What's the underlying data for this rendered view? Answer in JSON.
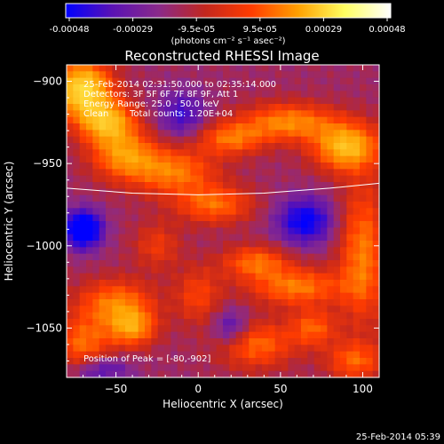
{
  "chart_data": {
    "type": "heatmap",
    "title": "Reconstructed RHESSI Image",
    "xlabel": "Heliocentric X (arcsec)",
    "ylabel": "Heliocentric Y (arcsec)",
    "xlim": [
      -80,
      110
    ],
    "ylim": [
      -1080,
      -890
    ],
    "x_ticks": [
      -50,
      0,
      50,
      100
    ],
    "y_ticks": [
      -900,
      -950,
      -1000,
      -1050
    ],
    "colorbar": {
      "ticks": [
        "-0.00048",
        "-0.00029",
        "-9.5e-05",
        "9.5e-05",
        "0.00029",
        "0.00048"
      ],
      "range": [
        -0.00048,
        0.00048
      ],
      "label": "(photons cm⁻² s⁻¹ asec⁻²)",
      "colors": [
        "#0000ff",
        "#5a12b4",
        "#8a2a8a",
        "#c2271e",
        "#ff3c00",
        "#ffa000",
        "#ffff60",
        "#ffffff"
      ]
    },
    "annotations": {
      "time_range": "25-Feb-2014 02:31:50.000 to 02:35:14.000",
      "detectors": "Detectors: 3F 5F 6F 7F 8F 9F, Att 1",
      "energy_range": "Energy Range: 25.0 - 50.0 keV",
      "algorithm": "Clean",
      "total_counts": "Total counts: 1.20E+04",
      "peak": "Position of Peak = [-80,-902]"
    },
    "peak_position": [
      -80,
      -902
    ],
    "limb": [
      [
        -80,
        -965
      ],
      [
        -40,
        -968
      ],
      [
        0,
        -969
      ],
      [
        40,
        -968
      ],
      [
        80,
        -965
      ],
      [
        110,
        -962
      ]
    ],
    "blobs": [
      {
        "x": -70,
        "y": -905,
        "sx": 12,
        "sy": 12,
        "a": 1.0
      },
      {
        "x": -55,
        "y": -925,
        "sx": 12,
        "sy": 9,
        "a": 0.75
      },
      {
        "x": -45,
        "y": -945,
        "sx": 14,
        "sy": 10,
        "a": 0.6
      },
      {
        "x": -15,
        "y": -955,
        "sx": 18,
        "sy": 10,
        "a": 0.55
      },
      {
        "x": 10,
        "y": -975,
        "sx": 16,
        "sy": 8,
        "a": 0.5
      },
      {
        "x": 20,
        "y": -935,
        "sx": 14,
        "sy": 7,
        "a": 0.5
      },
      {
        "x": 55,
        "y": -925,
        "sx": 20,
        "sy": 8,
        "a": 0.6
      },
      {
        "x": 90,
        "y": -940,
        "sx": 14,
        "sy": 10,
        "a": 0.8
      },
      {
        "x": 35,
        "y": -1010,
        "sx": 14,
        "sy": 7,
        "a": 0.5
      },
      {
        "x": 60,
        "y": -1025,
        "sx": 20,
        "sy": 8,
        "a": 0.55
      },
      {
        "x": 100,
        "y": -1005,
        "sx": 10,
        "sy": 30,
        "a": 0.55
      },
      {
        "x": -50,
        "y": -1035,
        "sx": 16,
        "sy": 10,
        "a": 0.55
      },
      {
        "x": -40,
        "y": -1050,
        "sx": 10,
        "sy": 8,
        "a": 0.6
      },
      {
        "x": -70,
        "y": -1060,
        "sx": 12,
        "sy": 12,
        "a": 0.5
      },
      {
        "x": 35,
        "y": -1060,
        "sx": 16,
        "sy": 10,
        "a": 0.5
      },
      {
        "x": 70,
        "y": -1050,
        "sx": 10,
        "sy": 8,
        "a": 0.45
      },
      {
        "x": 95,
        "y": -1070,
        "sx": 12,
        "sy": 8,
        "a": 0.45
      },
      {
        "x": 0,
        "y": -1030,
        "sx": 10,
        "sy": 12,
        "a": 0.35
      },
      {
        "x": -25,
        "y": -1000,
        "sx": 10,
        "sy": 10,
        "a": 0.3
      },
      {
        "x": -70,
        "y": -990,
        "sx": 8,
        "sy": 8,
        "a": -0.9
      },
      {
        "x": 65,
        "y": -985,
        "sx": 12,
        "sy": 10,
        "a": -0.6
      },
      {
        "x": -10,
        "y": -920,
        "sx": 10,
        "sy": 10,
        "a": -0.4
      },
      {
        "x": 20,
        "y": -1050,
        "sx": 8,
        "sy": 8,
        "a": -0.4
      },
      {
        "x": -60,
        "y": -1075,
        "sx": 12,
        "sy": 6,
        "a": -0.4
      }
    ]
  },
  "footer": {
    "timestamp": "25-Feb-2014 05:39"
  }
}
